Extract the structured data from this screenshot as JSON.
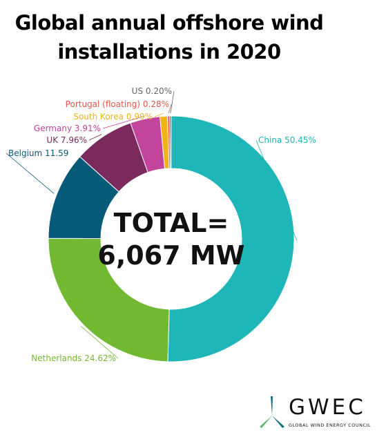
{
  "header": {
    "title_line1": "Global annual offshore wind",
    "title_line2": "installations in 2020"
  },
  "chart_data": {
    "type": "pie",
    "style": "donut",
    "title": "Global annual offshore wind installations in 2020",
    "center_text_line1": "TOTAL=",
    "center_text_line2": "6,067 MW",
    "slices": [
      {
        "name": "China",
        "label": "China 50.45%",
        "value": 50.45,
        "color": "#1fb6b8"
      },
      {
        "name": "Netherlands",
        "label": "Netherlands 24.62%",
        "value": 24.62,
        "color": "#72b932"
      },
      {
        "name": "Belgium",
        "label": "Belgium 11.59",
        "value": 11.59,
        "color": "#075b78"
      },
      {
        "name": "UK",
        "label": "UK 7.96%",
        "value": 7.96,
        "color": "#7b2a5e"
      },
      {
        "name": "Germany",
        "label": "Germany 3.91%",
        "value": 3.91,
        "color": "#c2449c"
      },
      {
        "name": "South Korea",
        "label": "South Korea 0.99%",
        "value": 0.99,
        "color": "#f0b318"
      },
      {
        "name": "Portugal (floating)",
        "label": "Portugal (floating) 0.28%",
        "value": 0.28,
        "color": "#e2574c"
      },
      {
        "name": "US",
        "label": "US 0.20%",
        "value": 0.2,
        "color": "#666666"
      }
    ]
  },
  "logo": {
    "wordmark": "GWEC",
    "subtitle": "GLOBAL WIND ENERGY COUNCIL",
    "colors": {
      "blade_dark": "#0d6e82",
      "blade_light": "#5bb86d",
      "text": "#111111"
    }
  }
}
